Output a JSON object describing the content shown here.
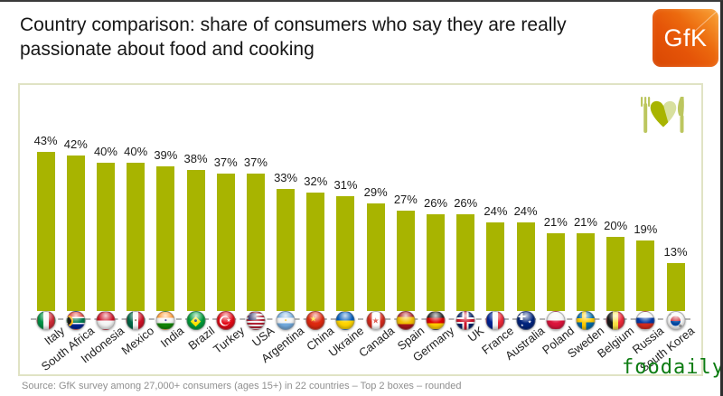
{
  "header": {
    "title": "Country comparison: share of consumers who say they are really passionate about food and cooking",
    "logo_text": "GfK"
  },
  "watermark": "foodaily",
  "footer": {
    "source": "Source: GfK survey among 27,000+ consumers (ages 15+) in 22 countries – Top 2 boxes – rounded"
  },
  "chart_data": {
    "type": "bar",
    "title": "Country comparison: share of consumers who say they are really passionate about food and cooking",
    "xlabel": "",
    "ylabel": "",
    "ylim": [
      0,
      45
    ],
    "grid": false,
    "legend": false,
    "value_suffix": "%",
    "bar_color": "#a8b400",
    "categories": [
      "Italy",
      "South Africa",
      "Indonesia",
      "Mexico",
      "India",
      "Brazil",
      "Turkey",
      "USA",
      "Argentina",
      "China",
      "Ukraine",
      "Canada",
      "Spain",
      "Germany",
      "UK",
      "France",
      "Australia",
      "Poland",
      "Sweden",
      "Belgium",
      "Russia",
      "South Korea"
    ],
    "values": [
      43,
      42,
      40,
      40,
      39,
      38,
      37,
      37,
      33,
      32,
      31,
      29,
      27,
      26,
      26,
      24,
      24,
      21,
      21,
      20,
      19,
      13
    ],
    "flags": {
      "Italy": {
        "bg": "linear-gradient(90deg,#009246 0 33%,#f5f5f5 33% 66%,#ce2b37 66%)"
      },
      "South Africa": {
        "bg": "linear-gradient(180deg,#de3831 0 30%,#fff 30% 37%,#007a4d 37% 63%,#fff 63% 70%,#002395 70%)",
        "emblems": [
          {
            "type": "disc",
            "bg": "#ffb612",
            "size": 13,
            "x": 2,
            "y": 50
          },
          {
            "type": "disc",
            "bg": "#1a1a1a",
            "size": 9,
            "x": 0,
            "y": 50
          }
        ]
      },
      "Indonesia": {
        "bg": "linear-gradient(180deg,#ce1126 0 50%,#f5f5f5 50%)"
      },
      "Mexico": {
        "bg": "linear-gradient(90deg,#006847 0 33%,#f5f5f5 33% 66%,#ce1126 66%)",
        "emblems": [
          {
            "char": "●",
            "color": "#6b4f2a",
            "size": 5,
            "x": 50,
            "y": 50
          }
        ]
      },
      "India": {
        "bg": "linear-gradient(180deg,#ff9933 0 33%,#f5f5f5 33% 66%,#138808 66%)",
        "emblems": [
          {
            "char": "●",
            "color": "#000080",
            "size": 5,
            "x": 50,
            "y": 50
          }
        ]
      },
      "Brazil": {
        "bg": "#009c3b",
        "emblems": [
          {
            "char": "◆",
            "color": "#ffdf00",
            "size": 15,
            "x": 50,
            "y": 50
          },
          {
            "char": "●",
            "color": "#002776",
            "size": 7,
            "x": 50,
            "y": 50
          }
        ]
      },
      "Turkey": {
        "bg": "#e30a17",
        "emblems": [
          {
            "type": "disc",
            "bg": "#fff",
            "size": 11,
            "x": 42,
            "y": 50
          },
          {
            "type": "disc",
            "bg": "#e30a17",
            "size": 9,
            "x": 50,
            "y": 50
          },
          {
            "char": "★",
            "color": "#fff",
            "size": 6,
            "x": 68,
            "y": 50
          }
        ]
      },
      "USA": {
        "bg": "repeating-linear-gradient(180deg,#b22234 0 2px,#f5f5f5 2px 4px)",
        "emblems": [
          {
            "type": "rect",
            "bg": "#3c3b6e",
            "x": 6,
            "y": 6,
            "w": 48,
            "h": 42
          }
        ]
      },
      "Argentina": {
        "bg": "linear-gradient(180deg,#74acdf 0 33%,#f5f5f5 33% 66%,#74acdf 66%)",
        "emblems": [
          {
            "char": "●",
            "color": "#f6b40e",
            "size": 5,
            "x": 50,
            "y": 50
          }
        ]
      },
      "China": {
        "bg": "#de2910",
        "emblems": [
          {
            "char": "★",
            "color": "#ffde00",
            "size": 9,
            "x": 36,
            "y": 40
          }
        ]
      },
      "Ukraine": {
        "bg": "linear-gradient(180deg,#005bbb 0 50%,#ffd500 50%)"
      },
      "Canada": {
        "bg": "linear-gradient(90deg,#d52b1e 0 27%,#fff 27% 73%,#d52b1e 73%)",
        "emblems": [
          {
            "char": "★",
            "color": "#d52b1e",
            "size": 9,
            "x": 50,
            "y": 50
          }
        ]
      },
      "Spain": {
        "bg": "linear-gradient(180deg,#aa151b 0 28%,#f1bf00 28% 72%,#aa151b 72%)"
      },
      "Germany": {
        "bg": "linear-gradient(180deg,#1a1a1a 0 33%,#dd0000 33% 66%,#ffce00 66%)"
      },
      "UK": {
        "bg": "linear-gradient(180deg,transparent 0 42%,#cf142b 42% 58%,transparent 58%),linear-gradient(90deg,transparent 0 42%,#cf142b 42% 58%,transparent 58%),linear-gradient(180deg,transparent 0 32%,#fff 32% 68%,transparent 68%),linear-gradient(90deg,transparent 0 32%,#fff 32% 68%,transparent 68%),#012169"
      },
      "France": {
        "bg": "linear-gradient(90deg,#002395 0 33%,#f5f5f5 33% 66%,#ed2939 66%)"
      },
      "Australia": {
        "bg": "#00247d",
        "emblems": [
          {
            "type": "rect",
            "bg": "linear-gradient(180deg,transparent 0 36%,#fff 36% 64%,transparent 64%),linear-gradient(90deg,transparent 0 36%,#fff 36% 64%,transparent 64%),#012169",
            "x": 4,
            "y": 6,
            "w": 48,
            "h": 42
          },
          {
            "char": "★",
            "color": "#fff",
            "size": 5,
            "x": 74,
            "y": 62
          },
          {
            "char": "★",
            "color": "#fff",
            "size": 4,
            "x": 30,
            "y": 80
          }
        ]
      },
      "Poland": {
        "bg": "linear-gradient(180deg,#f5f5f5 0 50%,#dc143c 50%)"
      },
      "Sweden": {
        "bg": "linear-gradient(180deg,transparent 0 38%,#fecc00 38% 60%,transparent 60%),linear-gradient(90deg,transparent 0 30%,#fecc00 30% 52%,transparent 52%),#006aa7"
      },
      "Belgium": {
        "bg": "linear-gradient(90deg,#1a1a1a 0 33%,#fae042 33% 66%,#ed2939 66%)"
      },
      "Russia": {
        "bg": "linear-gradient(180deg,#f5f5f5 0 33%,#0039a6 33% 66%,#d52b1e 66%)"
      },
      "South Korea": {
        "bg": "#f5f5f5",
        "emblems": [
          {
            "type": "disc",
            "bg": "linear-gradient(180deg,#cd2e3a 50%,#0047a0 50%)",
            "size": 11,
            "x": 50,
            "y": 50
          },
          {
            "char": "≡",
            "color": "#1a1a1a",
            "size": 6,
            "x": 16,
            "y": 18,
            "rot": -45
          },
          {
            "char": "≡",
            "color": "#1a1a1a",
            "size": 6,
            "x": 84,
            "y": 82,
            "rot": -45
          }
        ]
      }
    },
    "icon_colors": {
      "cutlery": "#bcc65f",
      "heart_light": "#d8e09e",
      "heart_dark": "#a8b400"
    }
  }
}
